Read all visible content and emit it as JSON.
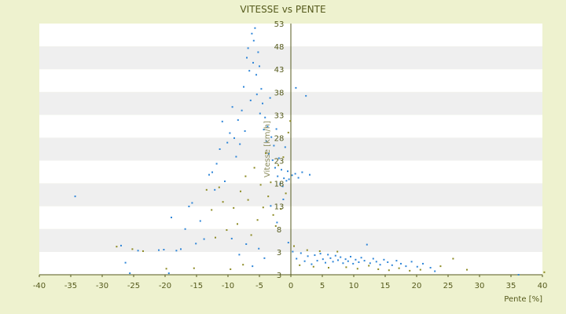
{
  "chart_data": {
    "type": "scatter",
    "title": "VITESSE vs PENTE",
    "xlabel": "Pente [%]",
    "ylabel": "Vitesse [km/h]",
    "xlim": [
      -40,
      40
    ],
    "ylim": [
      3,
      53
    ],
    "x_ticks": [
      "-40",
      "-35",
      "-30",
      "-25",
      "-20",
      "-15",
      "-10",
      "-5",
      "0",
      "5",
      "10",
      "15",
      "20",
      "25",
      "30",
      "35",
      "40"
    ],
    "y_ticks": [
      "3",
      "3",
      "8",
      "13",
      "18",
      "23",
      "28",
      "33",
      "38",
      "43",
      "48",
      "53"
    ],
    "grid": "horizontal alternating bands",
    "legend": "none",
    "colors": {
      "series_a": "#2f86d8",
      "series_b": "#8c8a22",
      "axis": "#555a1c"
    },
    "series": [
      {
        "color": "#2f86d8",
        "points": [
          [
            -34.3,
            18.6
          ],
          [
            -27.0,
            8.8
          ],
          [
            -26.3,
            5.4
          ],
          [
            -25.6,
            3.3
          ],
          [
            -24.3,
            7.8
          ],
          [
            -21.0,
            7.9
          ],
          [
            -20.2,
            8.0
          ],
          [
            -19.4,
            3.3
          ],
          [
            -19.0,
            14.4
          ],
          [
            -18.2,
            7.8
          ],
          [
            -17.5,
            8.1
          ],
          [
            -16.8,
            12.1
          ],
          [
            -16.2,
            16.6
          ],
          [
            -15.7,
            17.3
          ],
          [
            -15.1,
            9.2
          ],
          [
            -14.4,
            13.7
          ],
          [
            -13.8,
            10.1
          ],
          [
            -13.0,
            22.9
          ],
          [
            -12.5,
            23.4
          ],
          [
            -12.1,
            19.9
          ],
          [
            -11.8,
            25.1
          ],
          [
            -11.3,
            28.0
          ],
          [
            -10.9,
            33.5
          ],
          [
            -10.5,
            21.6
          ],
          [
            -10.1,
            29.3
          ],
          [
            -9.7,
            31.2
          ],
          [
            -9.3,
            36.4
          ],
          [
            -9.0,
            30.2
          ],
          [
            -8.7,
            26.5
          ],
          [
            -8.4,
            33.8
          ],
          [
            -8.1,
            29.0
          ],
          [
            -7.8,
            35.7
          ],
          [
            -7.5,
            40.4
          ],
          [
            -7.3,
            31.6
          ],
          [
            -7.0,
            46.2
          ],
          [
            -6.8,
            48.1
          ],
          [
            -6.6,
            43.6
          ],
          [
            -6.4,
            37.7
          ],
          [
            -6.2,
            51.0
          ],
          [
            -6.0,
            45.2
          ],
          [
            -5.9,
            49.6
          ],
          [
            -5.7,
            52.1
          ],
          [
            -5.5,
            42.8
          ],
          [
            -5.4,
            38.9
          ],
          [
            -5.2,
            47.3
          ],
          [
            -5.0,
            44.5
          ],
          [
            -4.9,
            35.1
          ],
          [
            -4.7,
            40.0
          ],
          [
            -4.5,
            37.1
          ],
          [
            -4.3,
            31.9
          ],
          [
            -4.1,
            34.3
          ],
          [
            -3.9,
            29.6
          ],
          [
            -3.7,
            32.5
          ],
          [
            -3.5,
            27.1
          ],
          [
            -3.3,
            38.2
          ],
          [
            -3.1,
            30.4
          ],
          [
            -2.9,
            25.8
          ],
          [
            -2.7,
            28.7
          ],
          [
            -2.5,
            24.3
          ],
          [
            -2.3,
            32.0
          ],
          [
            -2.1,
            22.6
          ],
          [
            -1.9,
            26.2
          ],
          [
            -1.7,
            21.1
          ],
          [
            -1.5,
            23.9
          ],
          [
            -1.3,
            20.6
          ],
          [
            -1.1,
            22.2
          ],
          [
            -0.9,
            28.4
          ],
          [
            -0.7,
            21.7
          ],
          [
            -0.5,
            23.6
          ],
          [
            -0.3,
            22.0
          ],
          [
            0.2,
            22.8
          ],
          [
            0.7,
            23.1
          ],
          [
            1.2,
            22.3
          ],
          [
            1.8,
            23.4
          ],
          [
            2.4,
            38.6
          ],
          [
            3.0,
            22.9
          ],
          [
            0.8,
            40.2
          ],
          [
            -0.4,
            9.4
          ],
          [
            0.3,
            7.6
          ],
          [
            0.9,
            6.2
          ],
          [
            1.6,
            7.3
          ],
          [
            2.2,
            5.7
          ],
          [
            2.7,
            6.7
          ],
          [
            3.3,
            5.1
          ],
          [
            3.8,
            6.9
          ],
          [
            4.2,
            5.8
          ],
          [
            4.7,
            7.2
          ],
          [
            5.1,
            6.1
          ],
          [
            5.5,
            5.4
          ],
          [
            5.9,
            7.0
          ],
          [
            6.3,
            6.3
          ],
          [
            6.7,
            5.6
          ],
          [
            7.1,
            6.8
          ],
          [
            7.5,
            5.9
          ],
          [
            7.9,
            6.5
          ],
          [
            8.3,
            5.3
          ],
          [
            8.7,
            6.1
          ],
          [
            9.1,
            5.7
          ],
          [
            9.5,
            6.6
          ],
          [
            9.9,
            5.2
          ],
          [
            10.3,
            6.0
          ],
          [
            10.8,
            5.5
          ],
          [
            11.2,
            6.4
          ],
          [
            11.7,
            5.8
          ],
          [
            12.1,
            9.0
          ],
          [
            12.6,
            5.3
          ],
          [
            13.1,
            6.2
          ],
          [
            13.6,
            5.6
          ],
          [
            14.2,
            5.0
          ],
          [
            14.8,
            6.0
          ],
          [
            15.4,
            5.5
          ],
          [
            16.1,
            4.9
          ],
          [
            16.8,
            5.8
          ],
          [
            17.5,
            5.2
          ],
          [
            18.3,
            4.7
          ],
          [
            19.2,
            5.6
          ],
          [
            20.1,
            4.6
          ],
          [
            21.0,
            5.2
          ],
          [
            22.2,
            4.4
          ],
          [
            22.9,
            3.7
          ],
          [
            36.2,
            3.0
          ],
          [
            -9.4,
            10.2
          ],
          [
            -8.2,
            7.0
          ],
          [
            -7.1,
            9.1
          ],
          [
            -6.1,
            4.7
          ],
          [
            -5.1,
            8.2
          ],
          [
            -4.2,
            6.3
          ],
          [
            -3.2,
            16.7
          ],
          [
            -2.2,
            13.4
          ],
          [
            -1.2,
            18.0
          ]
        ]
      },
      {
        "color": "#8c8a22",
        "points": [
          [
            -27.7,
            8.6
          ],
          [
            -25.2,
            8.1
          ],
          [
            -23.5,
            7.7
          ],
          [
            -19.8,
            4.2
          ],
          [
            -15.4,
            4.3
          ],
          [
            -13.4,
            19.9
          ],
          [
            -12.6,
            15.9
          ],
          [
            -12.0,
            10.4
          ],
          [
            -11.4,
            20.4
          ],
          [
            -10.8,
            17.5
          ],
          [
            -10.2,
            11.9
          ],
          [
            -9.6,
            4.1
          ],
          [
            -9.1,
            16.3
          ],
          [
            -8.5,
            13.1
          ],
          [
            -8.0,
            19.6
          ],
          [
            -7.6,
            5.0
          ],
          [
            -7.2,
            22.6
          ],
          [
            -6.8,
            17.9
          ],
          [
            -6.3,
            10.9
          ],
          [
            -5.8,
            24.3
          ],
          [
            -5.3,
            13.9
          ],
          [
            -4.8,
            20.9
          ],
          [
            -4.4,
            16.4
          ],
          [
            -4.0,
            27.2
          ],
          [
            -3.6,
            18.6
          ],
          [
            -3.2,
            21.4
          ],
          [
            -2.8,
            14.9
          ],
          [
            -2.4,
            12.7
          ],
          [
            -2.0,
            24.8
          ],
          [
            -1.6,
            16.1
          ],
          [
            -1.2,
            26.4
          ],
          [
            -0.8,
            19.2
          ],
          [
            -0.4,
            31.3
          ],
          [
            -0.1,
            33.6
          ],
          [
            0.5,
            8.7
          ],
          [
            1.4,
            4.9
          ],
          [
            2.6,
            7.9
          ],
          [
            3.6,
            4.6
          ],
          [
            4.6,
            7.7
          ],
          [
            6.0,
            4.4
          ],
          [
            7.4,
            7.6
          ],
          [
            8.8,
            4.5
          ],
          [
            10.6,
            4.2
          ],
          [
            12.4,
            4.8
          ],
          [
            13.9,
            4.1
          ],
          [
            15.6,
            3.9
          ],
          [
            17.2,
            4.3
          ],
          [
            18.9,
            3.8
          ],
          [
            20.6,
            4.0
          ],
          [
            23.8,
            4.7
          ],
          [
            25.8,
            6.2
          ],
          [
            28.0,
            4.0
          ],
          [
            40.3,
            3.5
          ]
        ]
      }
    ]
  }
}
